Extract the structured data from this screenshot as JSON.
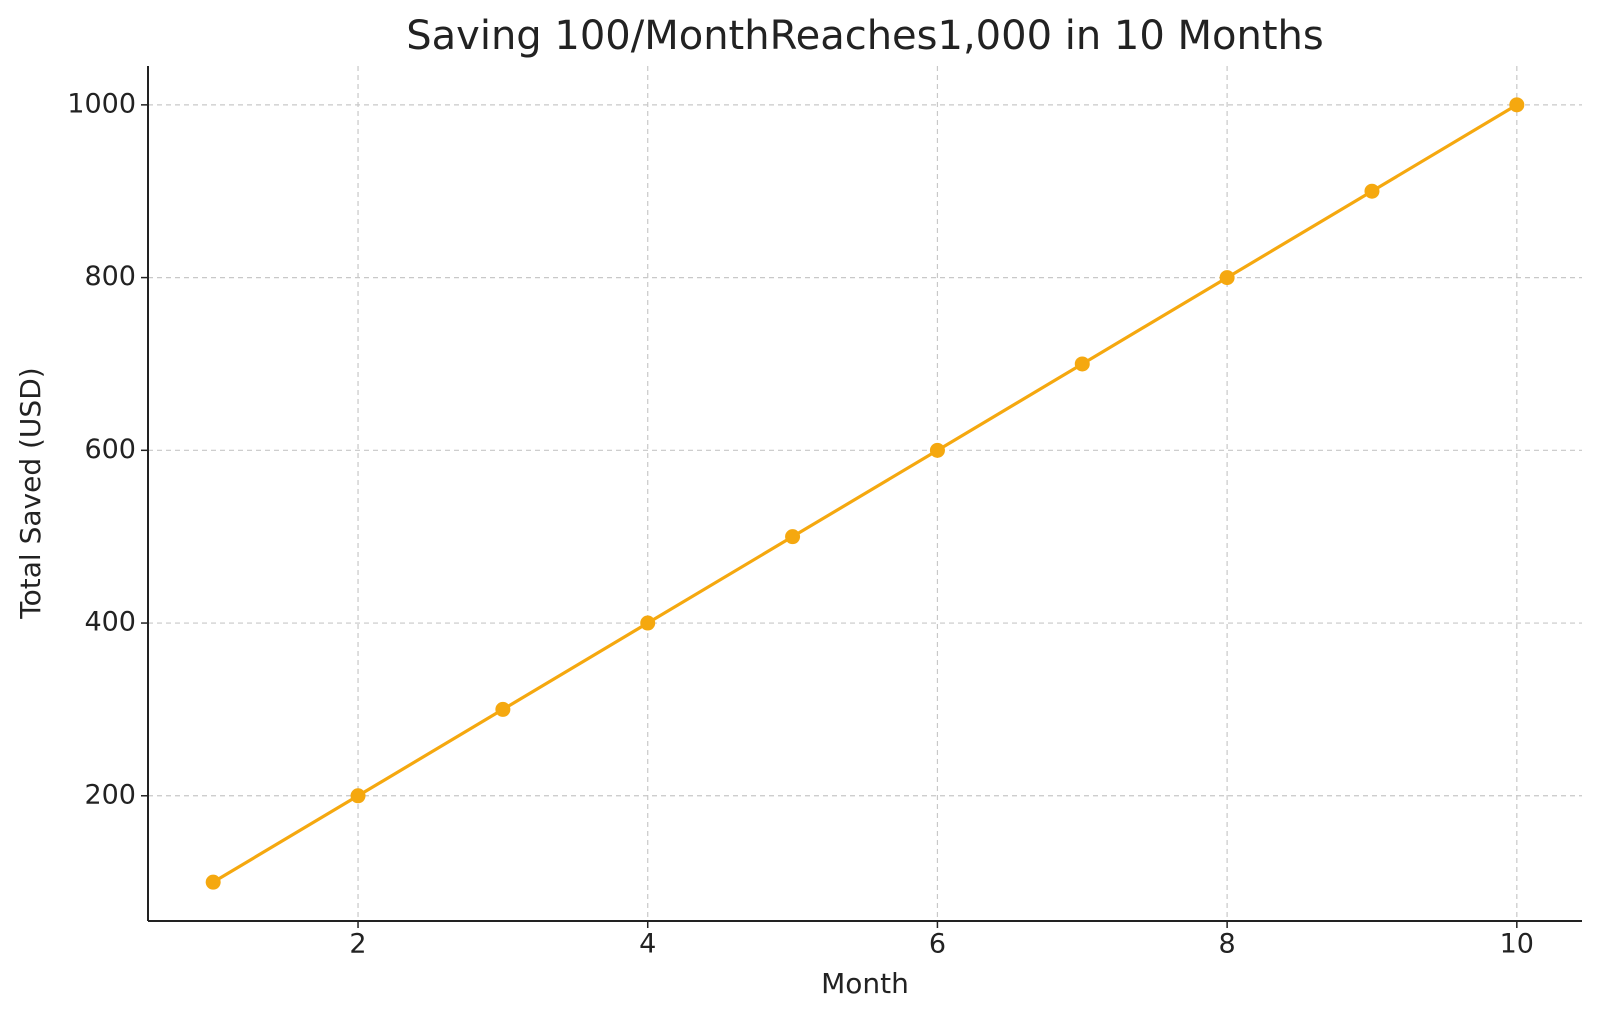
{
  "chart_data": {
    "type": "line",
    "title": "Saving 100/MonthReaches1,000 in 10 Months",
    "x_label": "Month",
    "y_label": "Total Saved (USD)",
    "x": [
      1,
      2,
      3,
      4,
      5,
      6,
      7,
      8,
      9,
      10
    ],
    "series": [
      {
        "color": "#f5a80f",
        "values": [
          100,
          200,
          300,
          400,
          500,
          600,
          700,
          800,
          900,
          1000
        ]
      }
    ],
    "xlim": [
      0.55,
      10.45
    ],
    "ylim": [
      55,
      1045
    ],
    "xticks": [
      2,
      4,
      6,
      8,
      10
    ],
    "yticks": [
      200,
      400,
      600,
      800,
      1000
    ],
    "grid": true
  }
}
